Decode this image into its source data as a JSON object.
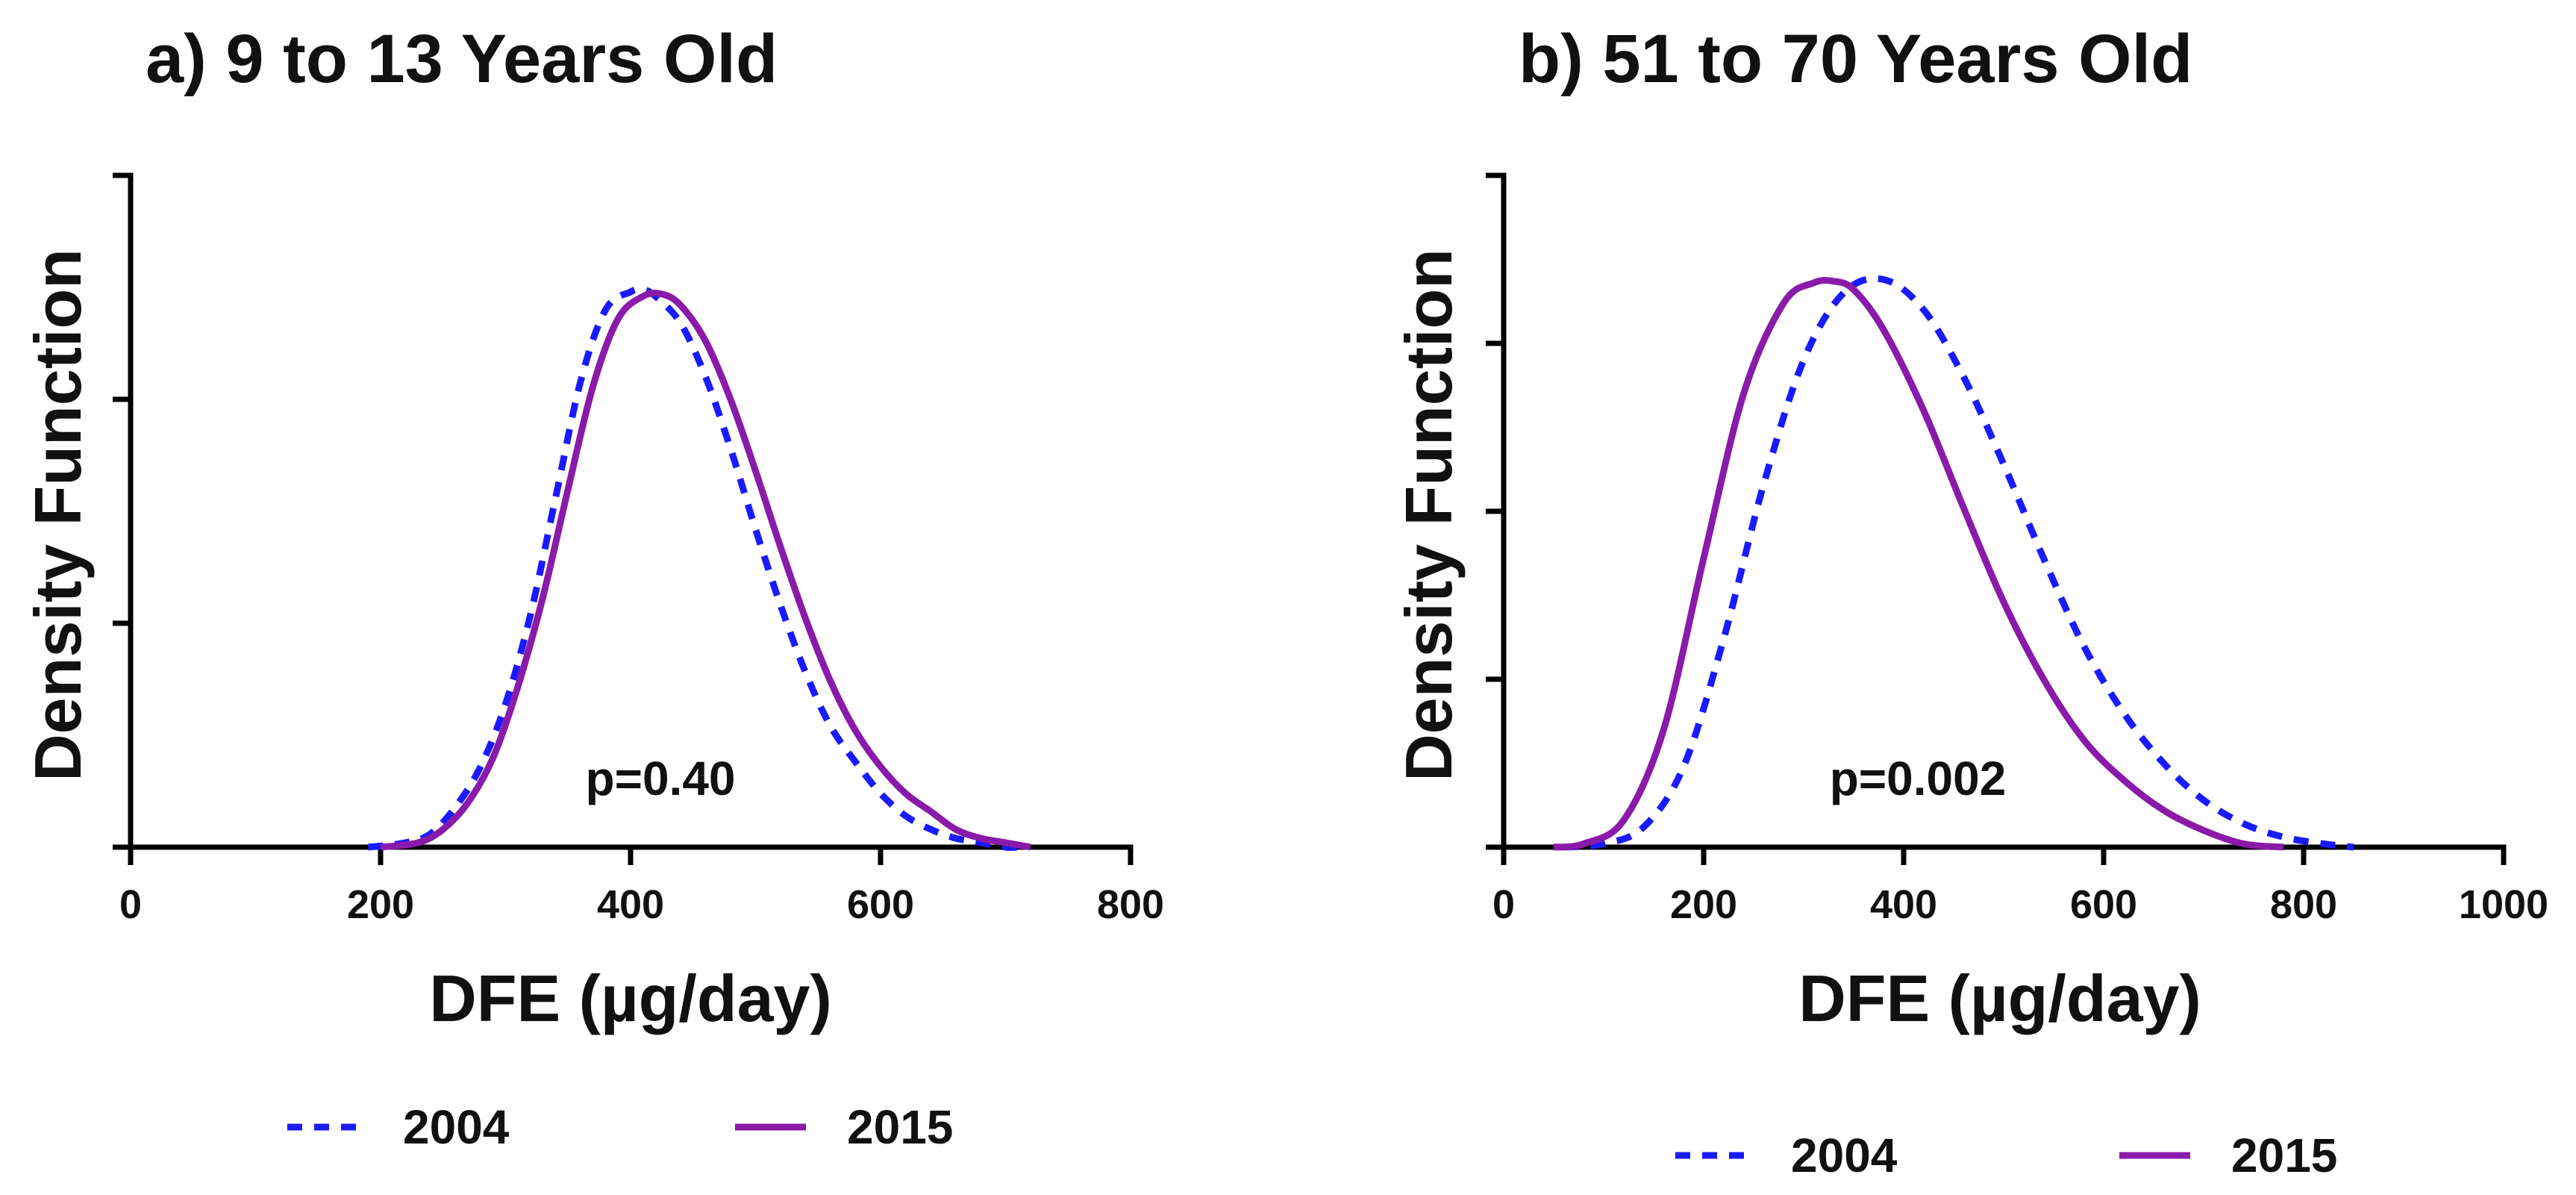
{
  "chart_data": [
    {
      "type": "line",
      "title": "a) 9 to 13 Years Old",
      "xlabel": "DFE (µg/day)",
      "ylabel": "Density Function",
      "xlim": [
        0,
        800
      ],
      "ylim": [
        0,
        1.5
      ],
      "xticks": [
        0,
        200,
        400,
        600,
        800
      ],
      "yticks": [
        0,
        0.5,
        1.0,
        1.5
      ],
      "ytick_labels_shown": false,
      "annotation": "p=0.40",
      "legend_position": "bottom",
      "series": [
        {
          "name": "2004",
          "color": "#1a1aff",
          "style": "dashed",
          "x": [
            190,
            220,
            240,
            260,
            280,
            300,
            320,
            340,
            360,
            380,
            400,
            410,
            420,
            440,
            460,
            480,
            500,
            520,
            540,
            560,
            580,
            600,
            620,
            640,
            660,
            680,
            700,
            710
          ],
          "y": [
            0.0,
            0.01,
            0.03,
            0.09,
            0.18,
            0.32,
            0.52,
            0.78,
            1.04,
            1.2,
            1.24,
            1.245,
            1.23,
            1.17,
            1.05,
            0.89,
            0.71,
            0.54,
            0.39,
            0.27,
            0.19,
            0.12,
            0.07,
            0.04,
            0.02,
            0.01,
            0.0,
            0.0
          ]
        },
        {
          "name": "2015",
          "color": "#8a1aaa",
          "style": "solid",
          "x": [
            200,
            230,
            250,
            270,
            290,
            310,
            330,
            350,
            370,
            390,
            410,
            425,
            440,
            460,
            480,
            500,
            520,
            540,
            560,
            580,
            600,
            620,
            640,
            660,
            680,
            700,
            720
          ],
          "y": [
            0.0,
            0.01,
            0.04,
            0.1,
            0.2,
            0.36,
            0.56,
            0.8,
            1.03,
            1.18,
            1.23,
            1.235,
            1.21,
            1.13,
            1.0,
            0.84,
            0.67,
            0.51,
            0.37,
            0.26,
            0.18,
            0.12,
            0.08,
            0.04,
            0.02,
            0.01,
            0.0
          ]
        }
      ]
    },
    {
      "type": "line",
      "title": "b) 51 to 70 Years Old",
      "xlabel": "DFE (µg/day)",
      "ylabel": "Density Function",
      "xlim": [
        0,
        1000
      ],
      "ylim": [
        0,
        2.0
      ],
      "xticks": [
        0,
        200,
        400,
        600,
        800,
        1000
      ],
      "yticks": [
        0,
        0.5,
        1.0,
        1.5,
        2.0
      ],
      "ytick_labels_shown": false,
      "annotation": "p=0.002",
      "legend_position": "bottom",
      "series": [
        {
          "name": "2004",
          "color": "#1a1aff",
          "style": "dashed",
          "x": [
            60,
            100,
            140,
            180,
            220,
            260,
            300,
            340,
            380,
            420,
            460,
            500,
            540,
            580,
            620,
            660,
            700,
            740,
            780,
            820,
            850
          ],
          "y": [
            0.0,
            0.01,
            0.06,
            0.24,
            0.62,
            1.08,
            1.45,
            1.65,
            1.69,
            1.6,
            1.4,
            1.14,
            0.86,
            0.6,
            0.4,
            0.25,
            0.14,
            0.07,
            0.03,
            0.01,
            0.0
          ]
        },
        {
          "name": "2015",
          "color": "#8a1aaa",
          "style": "solid",
          "x": [
            50,
            80,
            120,
            160,
            200,
            240,
            280,
            310,
            330,
            350,
            380,
            420,
            460,
            500,
            540,
            580,
            620,
            660,
            700,
            740,
            780
          ],
          "y": [
            0.0,
            0.01,
            0.08,
            0.35,
            0.86,
            1.35,
            1.62,
            1.68,
            1.685,
            1.66,
            1.54,
            1.3,
            1.01,
            0.73,
            0.5,
            0.32,
            0.2,
            0.11,
            0.05,
            0.01,
            0.0
          ]
        }
      ]
    }
  ]
}
